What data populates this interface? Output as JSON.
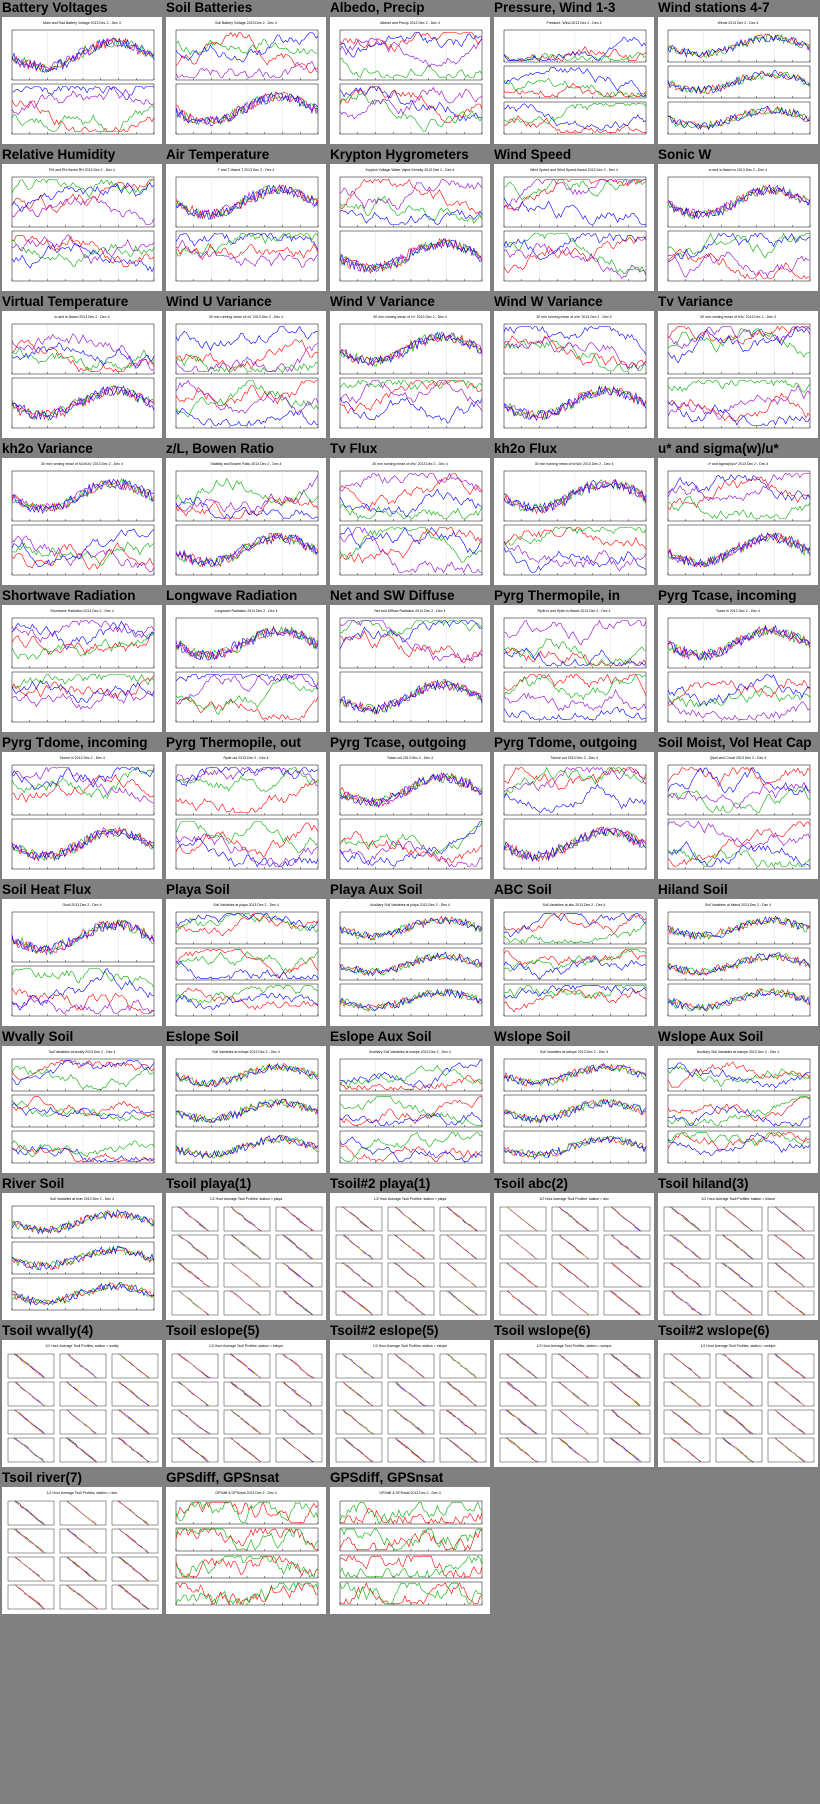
{
  "layout_note_free": true,
  "colors": {
    "background": "#808080",
    "panel": "#ffffff",
    "series": [
      "#000000",
      "#ff0000",
      "#00b000",
      "#0000ff",
      "#9400d3",
      "#ffa500",
      "#00cdcd",
      "#808080",
      "#b8860b"
    ]
  },
  "thumbnails": [
    {
      "title": "Battery Voltages",
      "kind": "ts2",
      "subtitle": "Main and Rad Battery Voltage 2013 Dec 2 - Dec 4"
    },
    {
      "title": "Soil Batteries",
      "kind": "ts2",
      "subtitle": "Soil Battery Voltage 2013 Dec 2 - Dec 4"
    },
    {
      "title": "Albedo, Precip",
      "kind": "ts2",
      "subtitle": "Albedo and Precip 2013 Dec 2 - Dec 4"
    },
    {
      "title": "Pressure, Wind 1-3",
      "kind": "ts3",
      "subtitle": "Pressure, Wind 2013 Dec 2 - Dec 4"
    },
    {
      "title": "Wind stations 4-7",
      "kind": "ts3",
      "subtitle": "Winds 2013 Dec 2 - Dec 4"
    },
    {
      "title": "Relative Humidity",
      "kind": "ts2",
      "subtitle": "RH and RH-Ifaxed RH 2013 Dec 2 - Dec 4"
    },
    {
      "title": "Air Temperature",
      "kind": "ts2",
      "subtitle": "T and T-Ifaxed T 2013 Dec 2 - Dec 4"
    },
    {
      "title": "Krypton Hygrometers",
      "kind": "ts2",
      "subtitle": "Krypton Voltage Water Vapor Density 2013 Dec 2 - Dec 4"
    },
    {
      "title": "Wind Speed",
      "kind": "ts2",
      "subtitle": "Wind Speed and Wind Speed-Ifaxed 2013 Dec 2 - Dec 4"
    },
    {
      "title": "Sonic W",
      "kind": "ts2",
      "subtitle": "w and w-Ifaxed w 2013 Dec 2 - Dec 4"
    },
    {
      "title": "Virtual Temperature",
      "kind": "ts2",
      "subtitle": "tc and tc-Ifaxed 2013 Dec 2 - Dec 4"
    },
    {
      "title": "Wind U Variance",
      "kind": "ts2",
      "subtitle": "30 min running mean of u'u' 2013 Dec 2 - Dec 4"
    },
    {
      "title": "Wind V Variance",
      "kind": "ts2",
      "subtitle": "30 min running mean of v'v' 2013 Dec 2 - Dec 4"
    },
    {
      "title": "Wind W Variance",
      "kind": "ts2",
      "subtitle": "30 min running mean of w'w' 2013 Dec 2 - Dec 4"
    },
    {
      "title": "Tv Variance",
      "kind": "ts2",
      "subtitle": "30 min running mean of tc'tc' 2013 Dec 2 - Dec 4"
    },
    {
      "title": "kh2o Variance",
      "kind": "ts2",
      "subtitle": "30 min running mean of h2o'h2o' 2013 Dec 2 - Dec 4"
    },
    {
      "title": "z/L, Bowen Ratio",
      "kind": "ts2",
      "subtitle": "Stability and Bowen Ratio 2013 Dec 2 - Dec 4"
    },
    {
      "title": "Tv Flux",
      "kind": "ts2",
      "subtitle": "30 min running mean of w'tc' 2013 Dec 2 - Dec 4"
    },
    {
      "title": "kh2o Flux",
      "kind": "ts2",
      "subtitle": "30 min running mean of w'h2o' 2013 Dec 2 - Dec 4"
    },
    {
      "title": "u* and sigma(w)/u*",
      "kind": "ts2",
      "subtitle": "u* and sigma(w)/u* 2013 Dec 2 - Dec 4"
    },
    {
      "title": "Shortwave Radiation",
      "kind": "ts2",
      "subtitle": "Shortwave Radiation 2013 Dec 2 - Dec 4"
    },
    {
      "title": "Longwave Radiation",
      "kind": "ts2",
      "subtitle": "Longwave Radiation 2013 Dec 2 - Dec 4"
    },
    {
      "title": "Net and SW Diffuse",
      "kind": "ts2",
      "subtitle": "Net and Diffuse Radiation 2013 Dec 2 - Dec 4"
    },
    {
      "title": "Pyrg Thermopile, in",
      "kind": "ts2",
      "subtitle": "Rpile.in and Rpile.in-Ifaxed 2013 Dec 2 - Dec 4"
    },
    {
      "title": "Pyrg Tcase, incoming",
      "kind": "ts2",
      "subtitle": "Tcase.in 2013 Dec 2 - Dec 4"
    },
    {
      "title": "Pyrg Tdome, incoming",
      "kind": "ts2",
      "subtitle": "Tdome.in 2013 Dec 2 - Dec 4"
    },
    {
      "title": "Pyrg Thermopile, out",
      "kind": "ts2",
      "subtitle": "Rpile.out 2013 Dec 2 - Dec 4"
    },
    {
      "title": "Pyrg Tcase, outgoing",
      "kind": "ts2",
      "subtitle": "Tcase.out 2013 Dec 2 - Dec 4"
    },
    {
      "title": "Pyrg Tdome, outgoing",
      "kind": "ts2",
      "subtitle": "Tdome.out 2013 Dec 2 - Dec 4"
    },
    {
      "title": "Soil Moist, Vol Heat Cap",
      "kind": "ts2",
      "subtitle": "Qsoil and Cvsoil 2013 Dec 2 - Dec 4"
    },
    {
      "title": "Soil Heat Flux",
      "kind": "ts2",
      "subtitle": "Gsoil 2013 Dec 2 - Dec 4"
    },
    {
      "title": "Playa Soil",
      "kind": "ts3",
      "subtitle": "Soil Variables at playa 2013 Dec 2 - Dec 4"
    },
    {
      "title": "Playa Aux Soil",
      "kind": "ts3",
      "subtitle": "Auxiliary Soil Variables at playa 2013 Dec 2 - Dec 4"
    },
    {
      "title": "ABC Soil",
      "kind": "ts3",
      "subtitle": "Soil Variables at abc 2013 Dec 2 - Dec 4"
    },
    {
      "title": "Hiland Soil",
      "kind": "ts3",
      "subtitle": "Soil Variables at hiland 2013 Dec 2 - Dec 4"
    },
    {
      "title": "Wvally Soil",
      "kind": "ts3",
      "subtitle": "Soil Variables at wvally 2013 Dec 2 - Dec 4"
    },
    {
      "title": "Eslope Soil",
      "kind": "ts3",
      "subtitle": "Soil Variables at eslope 2013 Dec 2 - Dec 4"
    },
    {
      "title": "Eslope Aux Soil",
      "kind": "ts3",
      "subtitle": "Auxiliary Soil Variables at eslope 2013 Dec 2 - Dec 4"
    },
    {
      "title": "Wslope Soil",
      "kind": "ts3",
      "subtitle": "Soil Variables at wslope 2013 Dec 2 - Dec 4"
    },
    {
      "title": "Wslope Aux Soil",
      "kind": "ts3",
      "subtitle": "Auxiliary Soil Variables at wslope 2013 Dec 2 - Dec 4"
    },
    {
      "title": "River Soil",
      "kind": "ts3",
      "subtitle": "Soil Variables at river 2013 Dec 2 - Dec 4"
    },
    {
      "title": "Tsoil playa(1)",
      "kind": "profile",
      "subtitle": "1/2 Hour Average Tsoil Profiles; station = playa",
      "cols": 3
    },
    {
      "title": "Tsoil#2 playa(1)",
      "kind": "profile",
      "subtitle": "1/2 Hour Average Tsoil Profiles; station = playa",
      "cols": 3
    },
    {
      "title": "Tsoil abc(2)",
      "kind": "profile",
      "subtitle": "1/2 Hour Average Tsoil Profiles; station = abc",
      "cols": 3
    },
    {
      "title": "Tsoil hiland(3)",
      "kind": "profile",
      "subtitle": "1/2 Hour Average Tsoil Profiles; station = hiland",
      "cols": 3
    },
    {
      "title": "Tsoil wvally(4)",
      "kind": "profile",
      "subtitle": "1/2 Hour Average Tsoil Profiles; station = wvally",
      "cols": 3
    },
    {
      "title": "Tsoil eslope(5)",
      "kind": "profile",
      "subtitle": "1/2 Hour Average Tsoil Profiles; station = eslope",
      "cols": 3
    },
    {
      "title": "Tsoil#2 eslope(5)",
      "kind": "profile",
      "subtitle": "1/2 Hour Average Tsoil Profiles; station = eslope",
      "cols": 3
    },
    {
      "title": "Tsoil wslope(6)",
      "kind": "profile",
      "subtitle": "1/2 Hour Average Tsoil Profiles; station = wslope",
      "cols": 3
    },
    {
      "title": "Tsoil#2 wslope(6)",
      "kind": "profile",
      "subtitle": "1/2 Hour Average Tsoil Profiles; station = wslope",
      "cols": 3
    },
    {
      "title": "Tsoil river(7)",
      "kind": "profile",
      "subtitle": "1/2 Hour Average Tsoil Profiles; station = river",
      "cols": 3
    },
    {
      "title": "GPSdiff, GPSnsat",
      "kind": "gps",
      "subtitle": "GPSdiff & GPSnsat 2013 Dec 2 - Dec 4"
    },
    {
      "title": "GPSdiff, GPSnsat",
      "kind": "gps",
      "subtitle": "GPSdiff & GPSnsat 2013 Dec 2 - Dec 4"
    }
  ]
}
